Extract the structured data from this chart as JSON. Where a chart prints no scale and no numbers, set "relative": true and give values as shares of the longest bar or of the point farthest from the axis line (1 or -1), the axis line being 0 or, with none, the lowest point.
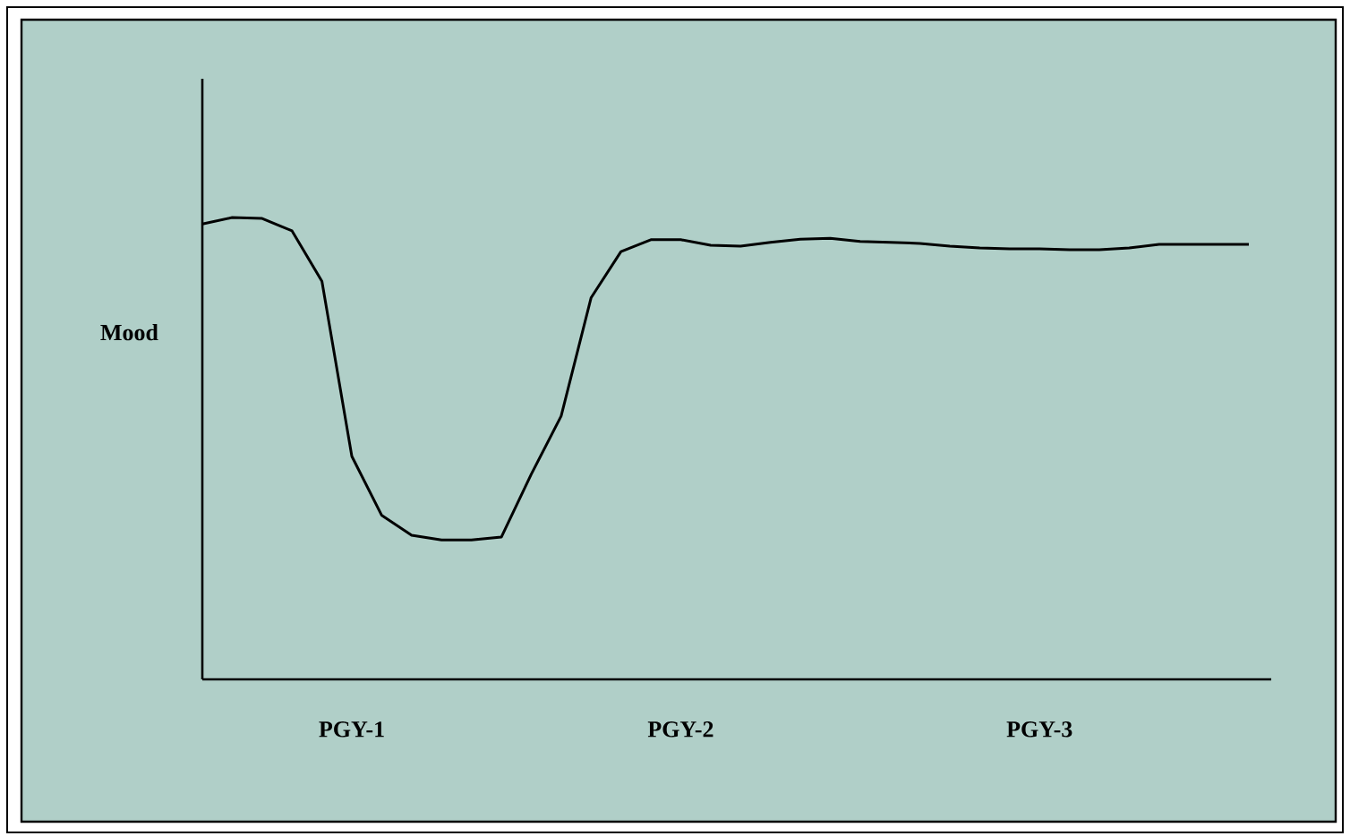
{
  "chart_data": {
    "type": "line",
    "ylabel": "Mood",
    "relative": true,
    "color": "#000000",
    "tick_labels": "x",
    "marker": "none",
    "line_style": "solid",
    "categories": [
      null,
      null,
      null,
      null,
      null,
      "PGY-1",
      null,
      null,
      null,
      null,
      null,
      null,
      null,
      null,
      null,
      null,
      "PGY-2",
      null,
      null,
      null,
      null,
      null,
      null,
      null,
      null,
      null,
      null,
      null,
      "PGY-3",
      null,
      null,
      null,
      null,
      null,
      null,
      null
    ],
    "values": [
      0.986,
      1.0,
      0.998,
      0.971,
      0.862,
      0.483,
      0.355,
      0.312,
      0.302,
      0.302,
      0.308,
      0.444,
      0.57,
      0.826,
      0.926,
      0.952,
      0.952,
      0.94,
      0.938,
      0.946,
      0.953,
      0.955,
      0.948,
      0.946,
      0.944,
      0.938,
      0.934,
      0.932,
      0.932,
      0.93,
      0.93,
      0.934,
      0.942,
      0.942,
      0.942,
      0.942
    ]
  }
}
